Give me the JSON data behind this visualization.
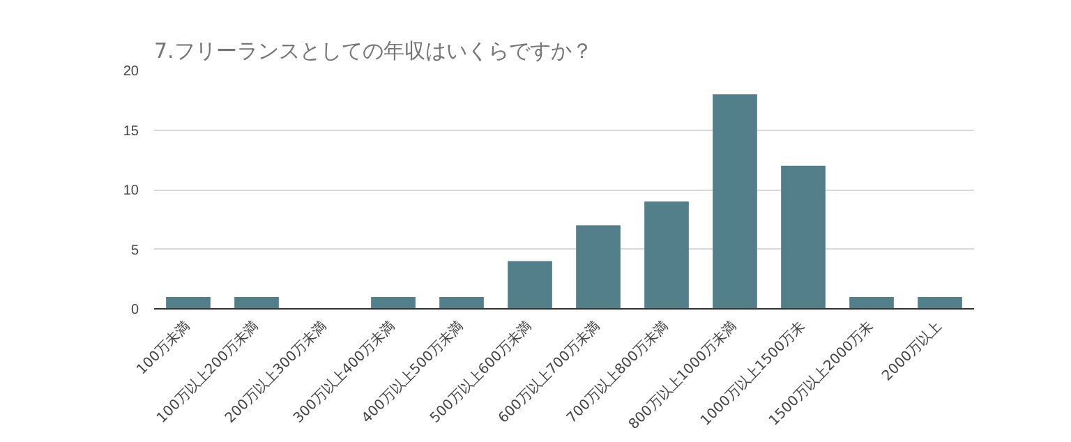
{
  "chart_data": {
    "type": "bar",
    "title": "7.フリーランスとしての年収はいくらですか？",
    "categories": [
      "100万未満",
      "100万以上200万未満",
      "200万以上300万未満",
      "300万以上400万未満",
      "400万以上500万未満",
      "500万以上600万未満",
      "600万以上700万未満",
      "700万以上800万未満",
      "800万以上1000万未満",
      "1000万以上1500万未",
      "1500万以上2000万未",
      "2000万以上"
    ],
    "values": [
      1,
      1,
      0,
      1,
      1,
      4,
      7,
      9,
      18,
      12,
      1,
      1
    ],
    "color": "#537f8a",
    "ylim": [
      0,
      20
    ],
    "yticks": [
      0,
      5,
      10,
      15,
      20
    ],
    "grid": "y"
  }
}
